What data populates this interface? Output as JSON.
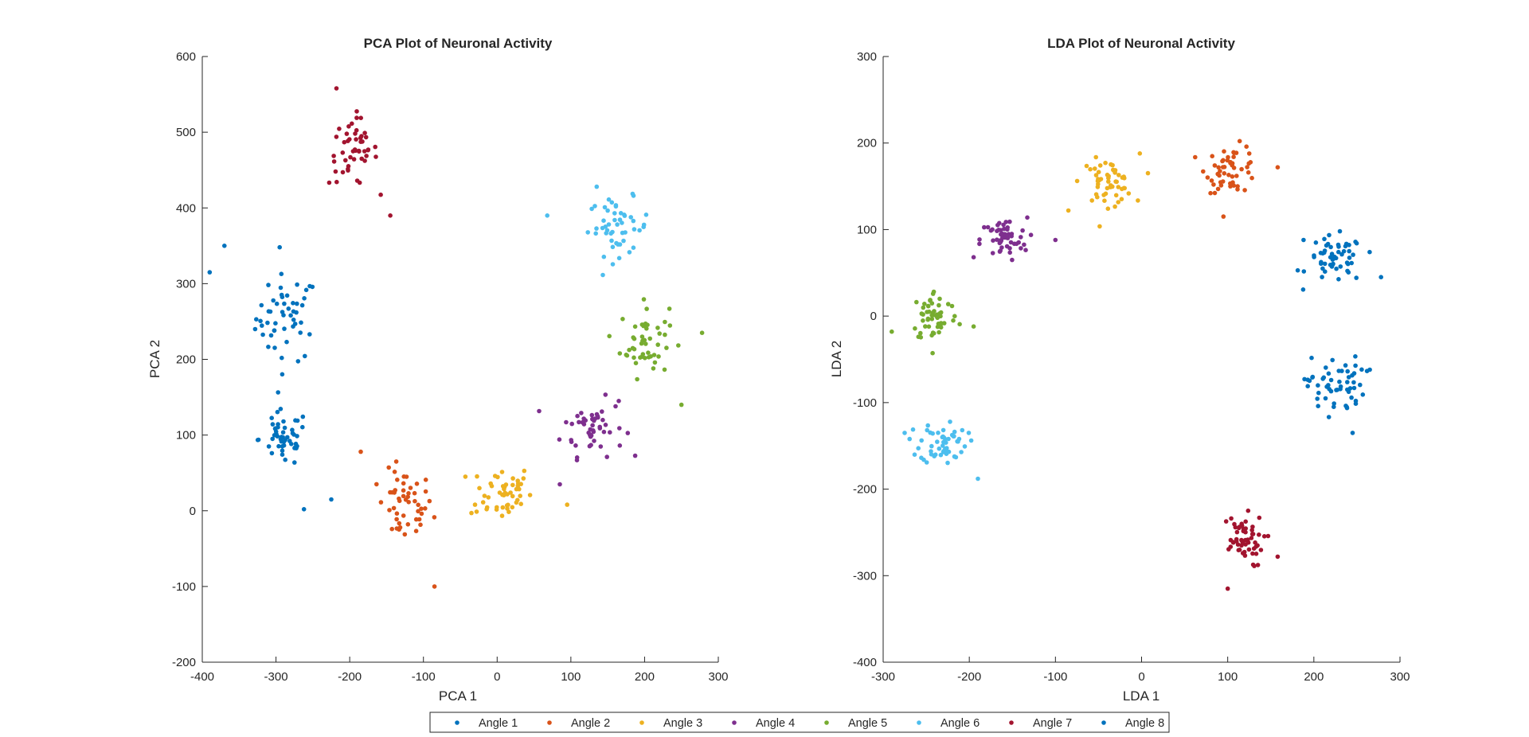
{
  "colors": {
    "axis": "#262626",
    "background": "#ffffff"
  },
  "legend": {
    "placement": "bottom-center",
    "entries": [
      {
        "label": "Angle 1",
        "color": "#0072BD"
      },
      {
        "label": "Angle 2",
        "color": "#D95319"
      },
      {
        "label": "Angle 3",
        "color": "#EDB120"
      },
      {
        "label": "Angle 4",
        "color": "#7E2F8E"
      },
      {
        "label": "Angle 5",
        "color": "#77AC30"
      },
      {
        "label": "Angle 6",
        "color": "#4DBEEE"
      },
      {
        "label": "Angle 7",
        "color": "#A2142F"
      },
      {
        "label": "Angle 8",
        "color": "#0072BD"
      }
    ]
  },
  "chart_data": [
    {
      "type": "scatter",
      "title": "PCA Plot of Neuronal Activity",
      "xlabel": "PCA 1",
      "ylabel": "PCA 2",
      "xlim": [
        -400,
        300
      ],
      "ylim": [
        -200,
        600
      ],
      "xticks": [
        -400,
        -300,
        -200,
        -100,
        0,
        100,
        200,
        300
      ],
      "yticks": [
        -200,
        -100,
        0,
        100,
        200,
        300,
        400,
        500,
        600
      ],
      "grid": false,
      "series": [
        {
          "name": "Angle 1",
          "color": "#0072BD",
          "center": [
            -285,
            255
          ],
          "spread": [
            28,
            38
          ],
          "n": 50,
          "outliers": [
            [
              -390,
              315
            ],
            [
              -370,
              350
            ],
            [
              -295,
              348
            ]
          ]
        },
        {
          "name": "Angle 2",
          "color": "#D95319",
          "center": [
            -125,
            5
          ],
          "spread": [
            25,
            32
          ],
          "n": 50,
          "outliers": [
            [
              -85,
              -100
            ],
            [
              -185,
              78
            ]
          ]
        },
        {
          "name": "Angle 3",
          "color": "#EDB120",
          "center": [
            5,
            25
          ],
          "spread": [
            28,
            25
          ],
          "n": 50,
          "outliers": [
            [
              -30,
              8
            ],
            [
              95,
              8
            ]
          ]
        },
        {
          "name": "Angle 4",
          "color": "#7E2F8E",
          "center": [
            130,
            110
          ],
          "spread": [
            28,
            25
          ],
          "n": 50,
          "outliers": [
            [
              85,
              35
            ],
            [
              165,
              145
            ]
          ]
        },
        {
          "name": "Angle 5",
          "color": "#77AC30",
          "center": [
            200,
            225
          ],
          "spread": [
            22,
            32
          ],
          "n": 50,
          "outliers": [
            [
              250,
              140
            ],
            [
              278,
              235
            ]
          ]
        },
        {
          "name": "Angle 6",
          "color": "#4DBEEE",
          "center": [
            165,
            375
          ],
          "spread": [
            28,
            25
          ],
          "n": 50,
          "outliers": [
            [
              68,
              390
            ],
            [
              135,
              428
            ]
          ]
        },
        {
          "name": "Angle 7",
          "color": "#A2142F",
          "center": [
            -195,
            475
          ],
          "spread": [
            22,
            30
          ],
          "n": 50,
          "outliers": [
            [
              -145,
              390
            ],
            [
              -218,
              558
            ]
          ]
        },
        {
          "name": "Angle 8",
          "color": "#0072BD",
          "center": [
            -290,
            95
          ],
          "spread": [
            22,
            25
          ],
          "n": 50,
          "outliers": [
            [
              -262,
              2
            ],
            [
              -225,
              15
            ]
          ]
        }
      ]
    },
    {
      "type": "scatter",
      "title": "LDA Plot of Neuronal Activity",
      "xlabel": "LDA 1",
      "ylabel": "LDA 2",
      "xlim": [
        -300,
        300
      ],
      "ylim": [
        -400,
        300
      ],
      "xticks": [
        -300,
        -200,
        -100,
        0,
        100,
        200,
        300
      ],
      "yticks": [
        -400,
        -300,
        -200,
        -100,
        0,
        100,
        200,
        300
      ],
      "grid": false,
      "series": [
        {
          "name": "Angle 1",
          "color": "#0072BD",
          "center": [
            225,
            65
          ],
          "spread": [
            22,
            18
          ],
          "n": 55,
          "outliers": [
            [
              278,
              45
            ],
            [
              188,
              88
            ]
          ]
        },
        {
          "name": "Angle 2",
          "color": "#D95319",
          "center": [
            105,
            170
          ],
          "spread": [
            20,
            18
          ],
          "n": 55,
          "outliers": [
            [
              158,
              172
            ],
            [
              95,
              115
            ]
          ]
        },
        {
          "name": "Angle 3",
          "color": "#EDB120",
          "center": [
            -40,
            155
          ],
          "spread": [
            20,
            17
          ],
          "n": 55,
          "outliers": [
            [
              -85,
              122
            ],
            [
              -2,
              188
            ]
          ]
        },
        {
          "name": "Angle 4",
          "color": "#7E2F8E",
          "center": [
            -160,
            88
          ],
          "spread": [
            18,
            17
          ],
          "n": 55,
          "outliers": [
            [
              -100,
              88
            ],
            [
              -195,
              68
            ]
          ]
        },
        {
          "name": "Angle 5",
          "color": "#77AC30",
          "center": [
            -240,
            0
          ],
          "spread": [
            18,
            20
          ],
          "n": 55,
          "outliers": [
            [
              -290,
              -18
            ],
            [
              -195,
              -12
            ]
          ]
        },
        {
          "name": "Angle 6",
          "color": "#4DBEEE",
          "center": [
            -230,
            -145
          ],
          "spread": [
            18,
            17
          ],
          "n": 55,
          "outliers": [
            [
              -275,
              -135
            ],
            [
              -190,
              -188
            ]
          ]
        },
        {
          "name": "Angle 7",
          "color": "#A2142F",
          "center": [
            115,
            -260
          ],
          "spread": [
            18,
            20
          ],
          "n": 55,
          "outliers": [
            [
              100,
              -315
            ],
            [
              158,
              -278
            ]
          ]
        },
        {
          "name": "Angle 8",
          "color": "#0072BD",
          "center": [
            225,
            -80
          ],
          "spread": [
            22,
            22
          ],
          "n": 55,
          "outliers": [
            [
              245,
              -135
            ],
            [
              265,
              -62
            ]
          ]
        }
      ]
    }
  ]
}
